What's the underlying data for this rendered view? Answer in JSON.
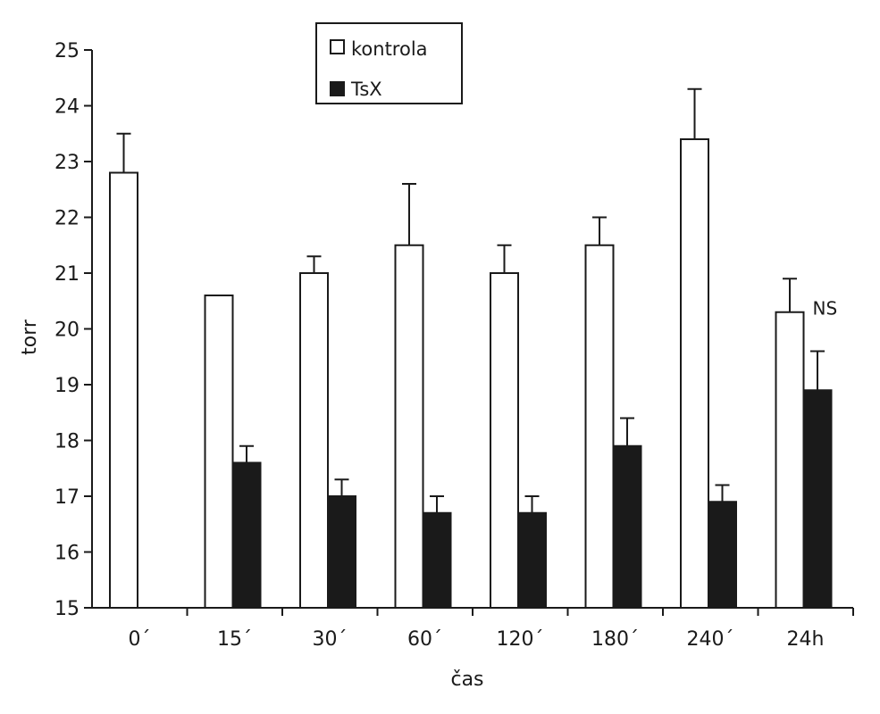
{
  "chart_data": {
    "type": "bar",
    "title": "",
    "xlabel": "čas",
    "ylabel": "torr",
    "ylim": [
      15,
      25
    ],
    "yticks": [
      15,
      16,
      17,
      18,
      19,
      20,
      21,
      22,
      23,
      24,
      25
    ],
    "categories": [
      "0´",
      "15´",
      "30´",
      "60´",
      "120´",
      "180´",
      "240´",
      "24h"
    ],
    "series": [
      {
        "name": "kontrola",
        "color": "#ffffff",
        "values": [
          22.8,
          20.6,
          21.0,
          21.5,
          21.0,
          21.5,
          23.4,
          20.3
        ],
        "error_upper": [
          0.7,
          null,
          0.3,
          1.1,
          0.5,
          0.5,
          0.9,
          0.6
        ]
      },
      {
        "name": "TsX",
        "color": "#1a1a1a",
        "values": [
          null,
          17.6,
          17.0,
          16.7,
          16.7,
          17.9,
          16.9,
          18.9
        ],
        "error_upper": [
          null,
          0.3,
          0.3,
          0.3,
          0.3,
          0.5,
          0.3,
          0.7
        ]
      }
    ],
    "annotations": [
      {
        "text": "NS",
        "category": "24h"
      }
    ],
    "legend": {
      "position": "top-center"
    },
    "grid": false
  }
}
